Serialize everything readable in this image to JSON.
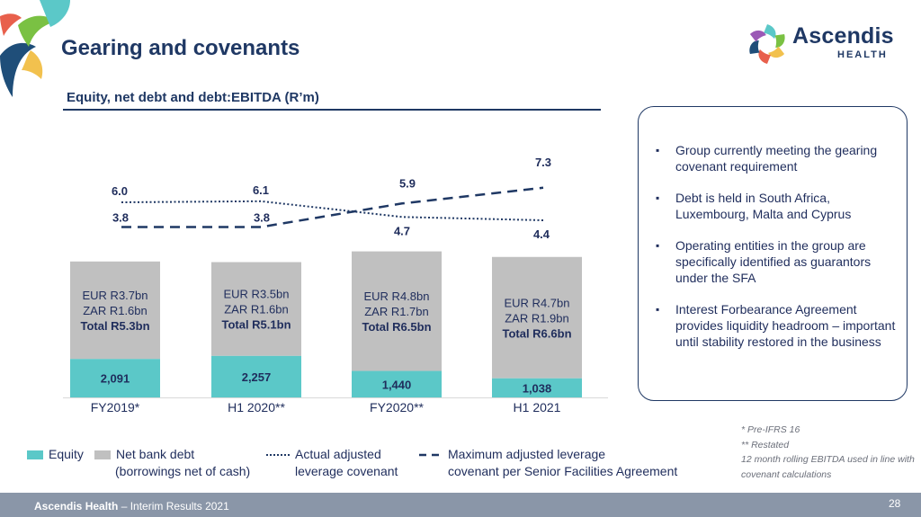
{
  "slide": {
    "title": "Gearing and covenants",
    "subtitle": "Equity, net debt and debt:EBITDA (R’m)"
  },
  "brand": {
    "name": "Ascendis",
    "sub": "HEALTH"
  },
  "colors": {
    "equity": "#5bc8c8",
    "debt": "#c0c0c0",
    "navy": "#1f3864",
    "text": "#1f2d5c"
  },
  "chart_data": {
    "type": "bar",
    "categories": [
      "FY2019*",
      "H1 2020**",
      "FY2020**",
      "H1 2021"
    ],
    "series": [
      {
        "name": "Equity",
        "values": [
          2091,
          2257,
          1440,
          1038
        ],
        "labels": [
          "2,091",
          "2,257",
          "1,440",
          "1,038"
        ]
      },
      {
        "name": "Net bank debt (borrowings net of cash)",
        "values": [
          5300,
          5100,
          6500,
          6600
        ],
        "breakdown": [
          {
            "eur": "EUR R3.7bn",
            "zar": "ZAR R1.6bn",
            "total": "Total R5.3bn"
          },
          {
            "eur": "EUR R3.5bn",
            "zar": "ZAR R1.6bn",
            "total": "Total R5.1bn"
          },
          {
            "eur": "EUR R4.8bn",
            "zar": "ZAR R1.7bn",
            "total": "Total R6.5bn"
          },
          {
            "eur": "EUR R4.7bn",
            "zar": "ZAR R1.9bn",
            "total": "Total R6.6bn"
          }
        ]
      }
    ],
    "lines": [
      {
        "name": "Actual adjusted leverage covenant",
        "style": "dotted",
        "values": [
          6.0,
          6.1,
          4.7,
          4.4
        ],
        "labels": [
          "6.0",
          "6.1",
          "4.7",
          "4.4"
        ]
      },
      {
        "name": "Maximum adjusted leverage covenant per Senior Facilities Agreement",
        "style": "dashed",
        "values": [
          3.8,
          3.8,
          5.9,
          7.3
        ],
        "labels": [
          "3.8",
          "3.8",
          "5.9",
          "7.3"
        ]
      }
    ],
    "legend_position": "bottom"
  },
  "legend": {
    "equity": "Equity",
    "debt_line1": "Net bank debt",
    "debt_line2": "(borrowings net of cash)",
    "actual_line1": "Actual adjusted",
    "actual_line2": "leverage covenant",
    "max_line1": "Maximum adjusted leverage",
    "max_line2": "covenant per Senior Facilities Agreement"
  },
  "bullets": [
    "Group currently meeting the gearing covenant requirement",
    "Debt is held in South Africa, Luxembourg, Malta and Cyprus",
    "Operating entities in the group are specifically identified as guarantors under the SFA",
    "Interest Forbearance Agreement provides liquidity headroom – important until stability restored in the business"
  ],
  "bullet_mark": "▪",
  "notes": [
    "*    Pre-IFRS 16",
    "**  Restated",
    "12 month rolling EBITDA used in line with covenant calculations"
  ],
  "footer": {
    "company": "Ascendis Health",
    "suffix": " – Interim Results 2021",
    "page": "28"
  }
}
